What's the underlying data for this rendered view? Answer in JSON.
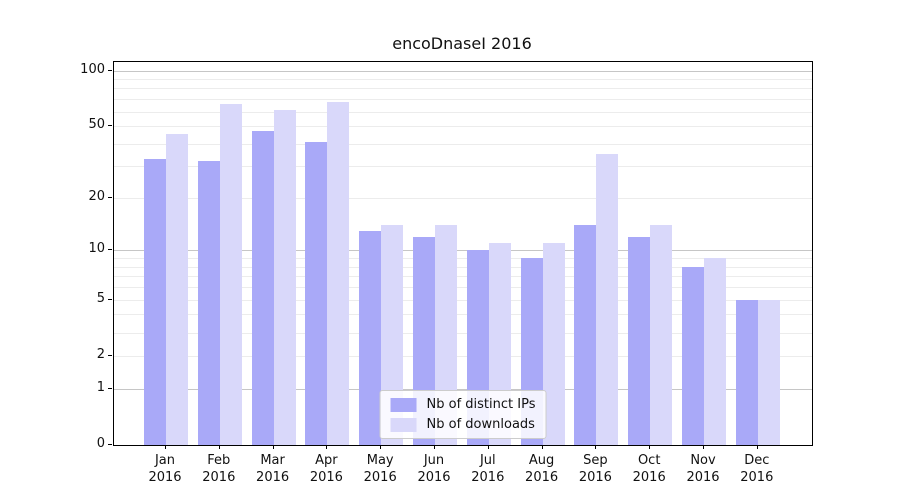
{
  "title": "encoDnaseI 2016",
  "chart_data": {
    "type": "bar",
    "title": "encoDnaseI 2016",
    "yscale": "log1p",
    "ylim": [
      0,
      112
    ],
    "grid": true,
    "categories": [
      "Jan 2016",
      "Feb 2016",
      "Mar 2016",
      "Apr 2016",
      "May 2016",
      "Jun 2016",
      "Jul 2016",
      "Aug 2016",
      "Sep 2016",
      "Oct 2016",
      "Nov 2016",
      "Dec 2016"
    ],
    "series": [
      {
        "name": "Nb of distinct IPs",
        "color": "#a9a9f8",
        "values": [
          33,
          32,
          47,
          41,
          13,
          12,
          10,
          9,
          14,
          12,
          8,
          5
        ]
      },
      {
        "name": "Nb of downloads",
        "color": "#d9d8fa",
        "values": [
          45,
          66,
          61,
          68,
          14,
          14,
          11,
          11,
          35,
          14,
          9,
          5
        ]
      }
    ],
    "ytick_labels": [
      0,
      1,
      2,
      5,
      10,
      20,
      50,
      100
    ],
    "minor_gridlines": [
      2,
      3,
      4,
      5,
      6,
      7,
      8,
      9,
      20,
      30,
      40,
      50,
      60,
      70,
      80,
      90
    ],
    "major_gridlines": [
      1,
      10,
      100
    ],
    "legend_position": "lower center",
    "colors": {
      "minor_grid": "#ececec",
      "major_grid": "#c6c6c6",
      "spine": "#000000",
      "text": "#111111"
    }
  }
}
